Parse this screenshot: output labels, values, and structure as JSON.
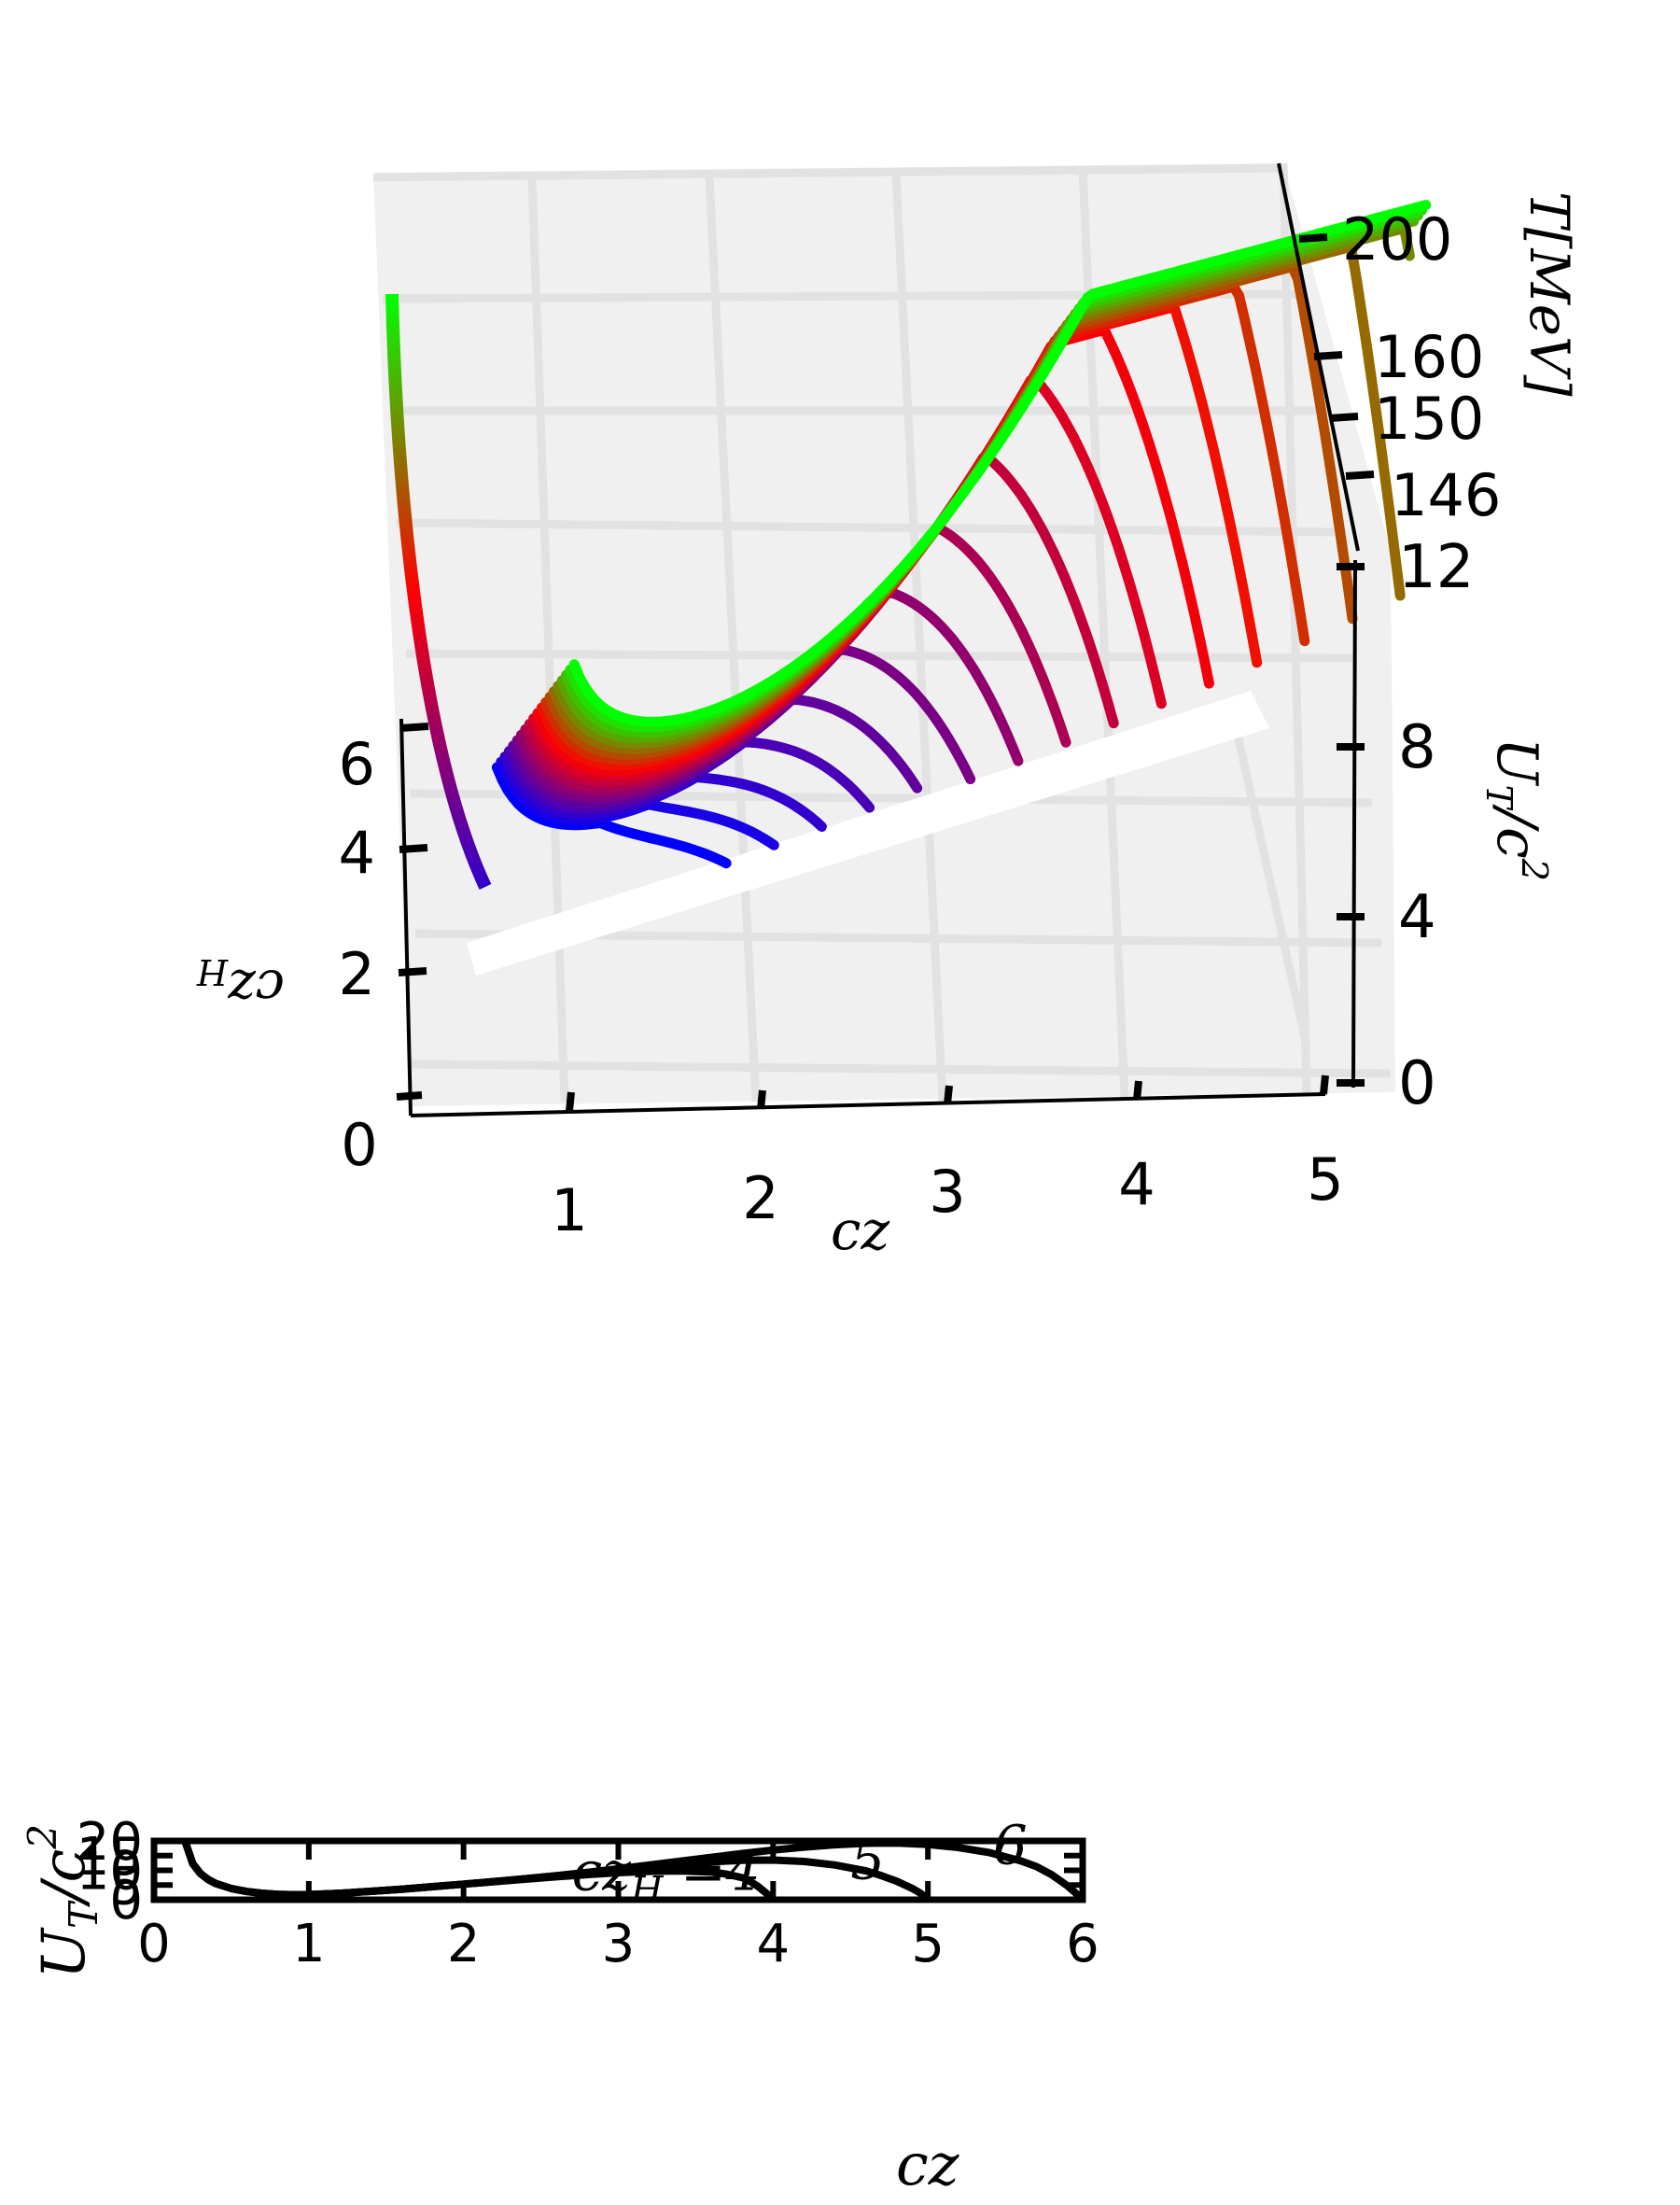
{
  "chart_data": [
    {
      "type": "line",
      "projection": "3d",
      "x_axis": {
        "label": "cz",
        "ticks": [
          "0",
          "1",
          "2",
          "3",
          "4",
          "5"
        ],
        "range": [
          0,
          5
        ]
      },
      "y_axis": {
        "label": "cz_H",
        "ticks": [
          "2",
          "4",
          "6"
        ],
        "range": [
          0,
          6.5
        ]
      },
      "z_axis": {
        "label": "U_T / c^2",
        "ticks": [
          "0",
          "4",
          "8",
          "12"
        ],
        "range": [
          0,
          14
        ]
      },
      "temperature_axis": {
        "label": "T[MeV]",
        "ticks": [
          "146",
          "150",
          "160",
          "200"
        ]
      },
      "grid": true,
      "curves": {
        "count": 20,
        "czH_range": [
          1.6,
          6.2
        ],
        "colormap": [
          "#0000ff",
          "#ff0000",
          "#00ff00"
        ]
      }
    },
    {
      "type": "line",
      "xlabel": "cz",
      "ylabel": "U_T / c^2",
      "xlim": [
        0,
        6
      ],
      "ylim": [
        0,
        20
      ],
      "xticks": [
        "0",
        "1",
        "2",
        "3",
        "4",
        "5",
        "6"
      ],
      "yticks": [
        "0",
        "5",
        "10",
        "15",
        "20"
      ],
      "series": [
        {
          "name": "4",
          "czH": 4,
          "annotation": "cz_H =4",
          "x": [
            0.2,
            0.25,
            0.3,
            0.35,
            0.4,
            0.5,
            0.6,
            0.7,
            0.8,
            0.9,
            1.0,
            1.2,
            1.4,
            1.6,
            1.8,
            2.0,
            2.2,
            2.4,
            2.6,
            2.8,
            3.0,
            3.2,
            3.4,
            3.6,
            3.7,
            3.8,
            3.85,
            3.9,
            3.95,
            3.98,
            4.0
          ],
          "y": [
            20,
            12.3,
            8.9,
            6.9,
            5.5,
            3.8,
            2.8,
            2.2,
            1.85,
            1.7,
            1.75,
            2.2,
            2.85,
            3.6,
            4.45,
            5.3,
            6.15,
            7.0,
            7.8,
            8.55,
            9.2,
            9.65,
            9.8,
            9.4,
            8.7,
            7.5,
            6.3,
            4.6,
            2.5,
            1.1,
            0
          ]
        },
        {
          "name": "5",
          "czH": 5,
          "x": [
            0.2,
            0.25,
            0.3,
            0.35,
            0.4,
            0.5,
            0.6,
            0.7,
            0.8,
            0.9,
            1.0,
            1.2,
            1.4,
            1.6,
            1.8,
            2.0,
            2.2,
            2.4,
            2.6,
            2.8,
            3.0,
            3.2,
            3.4,
            3.6,
            3.8,
            4.0,
            4.2,
            4.4,
            4.6,
            4.7,
            4.8,
            4.9,
            4.95,
            4.98,
            5.0
          ],
          "y": [
            20,
            12.3,
            8.9,
            6.9,
            5.5,
            3.8,
            2.8,
            2.2,
            1.85,
            1.7,
            1.75,
            2.2,
            2.85,
            3.6,
            4.45,
            5.3,
            6.2,
            7.15,
            8.15,
            9.2,
            10.25,
            11.2,
            12.1,
            12.9,
            13.4,
            13.5,
            13.0,
            11.8,
            9.8,
            8.2,
            6.3,
            3.8,
            2.3,
            1.0,
            0
          ]
        },
        {
          "name": "6",
          "czH": 6,
          "x": [
            0.2,
            0.25,
            0.3,
            0.35,
            0.4,
            0.5,
            0.6,
            0.7,
            0.8,
            0.9,
            1.0,
            1.2,
            1.4,
            1.6,
            1.8,
            2.0,
            2.2,
            2.4,
            2.6,
            2.8,
            3.0,
            3.2,
            3.4,
            3.6,
            3.8,
            4.0,
            4.2,
            4.4,
            4.6,
            4.8,
            5.0,
            5.2,
            5.4,
            5.6,
            5.7,
            5.8,
            5.9,
            5.95,
            6.0
          ],
          "y": [
            20,
            12.3,
            8.9,
            6.9,
            5.5,
            3.8,
            2.8,
            2.2,
            1.85,
            1.7,
            1.75,
            2.2,
            2.85,
            3.6,
            4.45,
            5.3,
            6.2,
            7.15,
            8.2,
            9.3,
            10.5,
            11.8,
            13.1,
            14.4,
            15.7,
            16.9,
            17.9,
            18.7,
            19.2,
            19.3,
            18.8,
            17.7,
            16.0,
            13.2,
            11.3,
            8.5,
            4.8,
            2.5,
            0
          ]
        }
      ]
    }
  ]
}
